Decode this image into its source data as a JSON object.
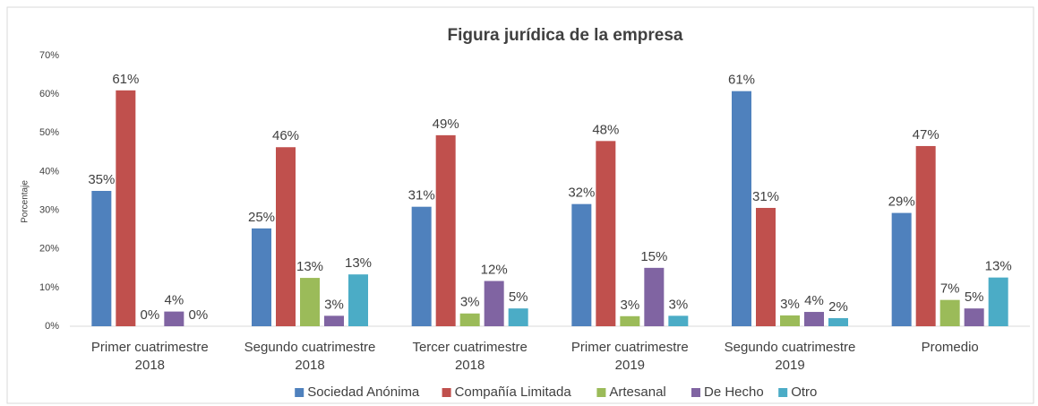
{
  "chart_data": {
    "type": "bar",
    "title": "Figura jurídica de la empresa",
    "y_label": "Porcentaje",
    "categories": [
      [
        "Primer cuatrimestre",
        "2018"
      ],
      [
        "Segundo cuatrimestre",
        "2018"
      ],
      [
        "Tercer cuatrimestre",
        "2018"
      ],
      [
        "Primer cuatrimestre",
        "2019"
      ],
      [
        "Segundo cuatrimestre",
        "2019"
      ],
      [
        "Promedio"
      ]
    ],
    "series": [
      {
        "name": "Sociedad Anónima",
        "color": "#4f81bd",
        "values": [
          35,
          25.3,
          30.9,
          31.6,
          60.8,
          29.3
        ],
        "value_labels": [
          "35%",
          "25%",
          "31%",
          "32%",
          "61%",
          "29%"
        ]
      },
      {
        "name": "Compañía Limitada",
        "color": "#c0504d",
        "values": [
          61,
          46.3,
          49.4,
          47.9,
          30.6,
          46.6
        ],
        "value_labels": [
          "61%",
          "46%",
          "49%",
          "48%",
          "31%",
          "47%"
        ]
      },
      {
        "name": "Artesanal",
        "color": "#9bbb59",
        "values": [
          0,
          12.5,
          3.3,
          2.6,
          2.8,
          6.8
        ],
        "value_labels": [
          "0%",
          "13%",
          "3%",
          "3%",
          "3%",
          "7%"
        ]
      },
      {
        "name": "De Hecho",
        "color": "#8064a2",
        "values": [
          3.8,
          2.7,
          11.7,
          15.1,
          3.7,
          4.6
        ],
        "value_labels": [
          "4%",
          "3%",
          "12%",
          "15%",
          "4%",
          "5%"
        ]
      },
      {
        "name": "Otro",
        "color": "#4bacc6",
        "values": [
          0,
          13.4,
          4.6,
          2.7,
          2.1,
          12.6
        ],
        "value_labels": [
          "0%",
          "13%",
          "5%",
          "3%",
          "2%",
          "13%"
        ]
      }
    ],
    "ylim": [
      0,
      70
    ],
    "yticks": [
      {
        "value": 0,
        "label": "0%"
      },
      {
        "value": 10,
        "label": "10%"
      },
      {
        "value": 20,
        "label": "20%"
      },
      {
        "value": 30,
        "label": "30%"
      },
      {
        "value": 40,
        "label": "40%"
      },
      {
        "value": 50,
        "label": "50%"
      },
      {
        "value": 60,
        "label": "60%"
      },
      {
        "value": 70,
        "label": "70%"
      }
    ],
    "grid": false,
    "legend": "bottom"
  }
}
